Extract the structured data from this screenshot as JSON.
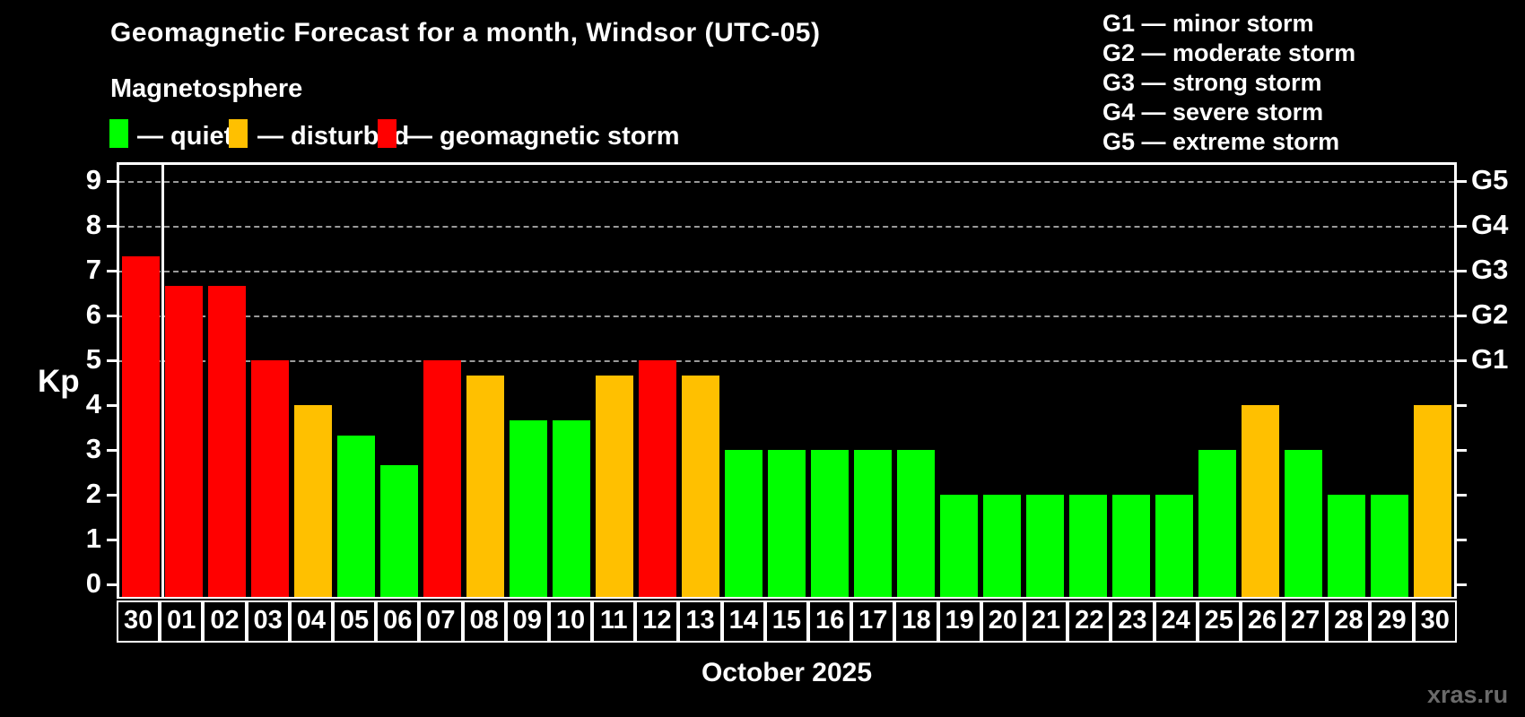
{
  "header": {
    "title": "Geomagnetic Forecast for a month, Windsor (UTC-05)",
    "subtitle": "Magnetosphere"
  },
  "status_legend": {
    "items": [
      {
        "key": "quiet",
        "label": "— quiet",
        "color": "#00ff00"
      },
      {
        "key": "disturbed",
        "label": "— disturbed",
        "color": "#ffc000"
      },
      {
        "key": "storm",
        "label": "— geomagnetic storm",
        "color": "#ff0000"
      }
    ]
  },
  "storm_scale_legend": {
    "lines": [
      "G1 — minor storm",
      "G2 — moderate storm",
      "G3 — strong storm",
      "G4 — severe storm",
      "G5 — extreme storm"
    ]
  },
  "footer": {
    "watermark": "xras.ru"
  },
  "chart_data": {
    "type": "bar",
    "title": "Geomagnetic Forecast for a month, Windsor (UTC-05)",
    "xlabel": "October 2025",
    "ylabel": "Kp",
    "ylim": [
      0,
      9.7
    ],
    "yticks": [
      0,
      1,
      2,
      3,
      4,
      5,
      6,
      7,
      8,
      9
    ],
    "grid": "dashed horizontal lines at Kp 5-9 (G1-G5 levels) only",
    "legend_position": "top-left",
    "right_axis_labels": [
      {
        "kp": 5,
        "label": "G1"
      },
      {
        "kp": 6,
        "label": "G2"
      },
      {
        "kp": 7,
        "label": "G3"
      },
      {
        "kp": 8,
        "label": "G4"
      },
      {
        "kp": 9,
        "label": "G5"
      }
    ],
    "month_separator_after_index": 0,
    "categories": [
      "30",
      "01",
      "02",
      "03",
      "04",
      "05",
      "06",
      "07",
      "08",
      "09",
      "10",
      "11",
      "12",
      "13",
      "14",
      "15",
      "16",
      "17",
      "18",
      "19",
      "20",
      "21",
      "22",
      "23",
      "24",
      "25",
      "26",
      "27",
      "28",
      "29",
      "30"
    ],
    "values": [
      7.33,
      6.67,
      6.67,
      5,
      4,
      3.33,
      2.67,
      5,
      4.67,
      3.67,
      3.67,
      4.67,
      5,
      4.67,
      3,
      3,
      3,
      3,
      3,
      2,
      2,
      2,
      2,
      2,
      2,
      3,
      4,
      3,
      2,
      2,
      4
    ],
    "statuses": [
      "storm",
      "storm",
      "storm",
      "storm",
      "disturbed",
      "quiet",
      "quiet",
      "storm",
      "disturbed",
      "quiet",
      "quiet",
      "disturbed",
      "storm",
      "disturbed",
      "quiet",
      "quiet",
      "quiet",
      "quiet",
      "quiet",
      "quiet",
      "quiet",
      "quiet",
      "quiet",
      "quiet",
      "quiet",
      "quiet",
      "disturbed",
      "quiet",
      "quiet",
      "quiet",
      "disturbed"
    ],
    "colors": {
      "quiet": "#00ff00",
      "disturbed": "#ffc000",
      "storm": "#ff0000"
    }
  }
}
